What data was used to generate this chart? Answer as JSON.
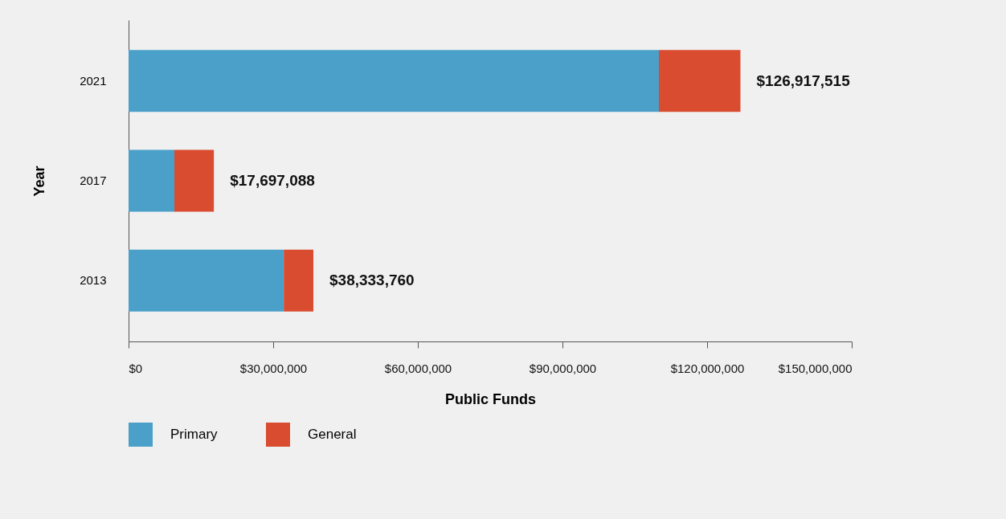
{
  "chart_data": {
    "type": "bar",
    "orientation": "horizontal",
    "stacked": true,
    "xlabel": "Public Funds",
    "ylabel": "Year",
    "categories": [
      "2021",
      "2017",
      "2013"
    ],
    "series": [
      {
        "name": "Primary",
        "color": "#4aa0c8",
        "values": [
          110000000,
          9500000,
          32200000
        ]
      },
      {
        "name": "General",
        "color": "#d94c30",
        "values": [
          16917515,
          8197088,
          6133760
        ]
      }
    ],
    "totals": [
      "$126,917,515",
      "$17,697,088",
      "$38,333,760"
    ],
    "xlim": [
      0,
      150000000
    ],
    "xticks": [
      {
        "value": 0,
        "label": "$0"
      },
      {
        "value": 30000000,
        "label": "$30,000,000"
      },
      {
        "value": 60000000,
        "label": "$60,000,000"
      },
      {
        "value": 90000000,
        "label": "$90,000,000"
      },
      {
        "value": 120000000,
        "label": "$120,000,000"
      },
      {
        "value": 150000000,
        "label": "$150,000,000"
      }
    ],
    "grid": false,
    "legend": "bottom"
  }
}
